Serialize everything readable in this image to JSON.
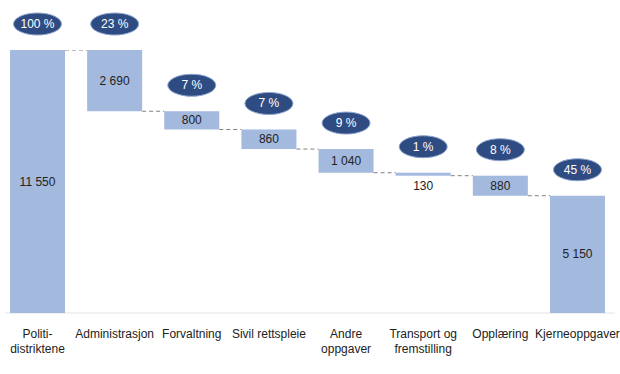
{
  "chart_data": {
    "type": "waterfall",
    "categories": [
      "Politi-\ndistriktene",
      "Administrasjon",
      "Forvaltning",
      "Sivil rettspleie",
      "Andre\noppgaver",
      "Transport og\nfremstilling",
      "Opplæring",
      "Kjerneoppgaver"
    ],
    "values": [
      11550,
      2690,
      800,
      860,
      1040,
      130,
      880,
      5150
    ],
    "value_labels": [
      "11 550",
      "2 690",
      "800",
      "860",
      "1 040",
      "130",
      "880",
      "5 150"
    ],
    "percent_labels": [
      "100 %",
      "23 %",
      "7 %",
      "7 %",
      "9 %",
      "1 %",
      "8 %",
      "45 %"
    ],
    "color": "#a3b9de",
    "ylim": [
      0,
      11550
    ],
    "data_labels": true,
    "tick_labels": "x",
    "grid": false
  }
}
